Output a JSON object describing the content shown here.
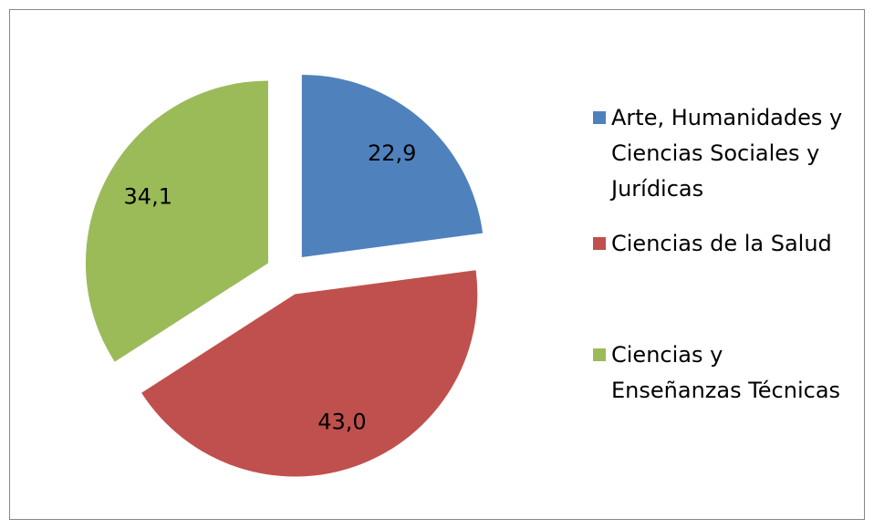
{
  "chart_data": {
    "type": "pie",
    "categories": [
      "Arte, Humanidades y Ciencias Sociales y Jurídicas",
      "Ciencias de la Salud",
      "Ciencias y Enseñanzas Técnicas"
    ],
    "values": [
      22.9,
      43.0,
      34.1
    ],
    "value_labels": [
      "22,9",
      "43,0",
      "34,1"
    ],
    "colors": [
      "#4f81bd",
      "#c0504d",
      "#9bbb59"
    ],
    "legend": "right"
  }
}
